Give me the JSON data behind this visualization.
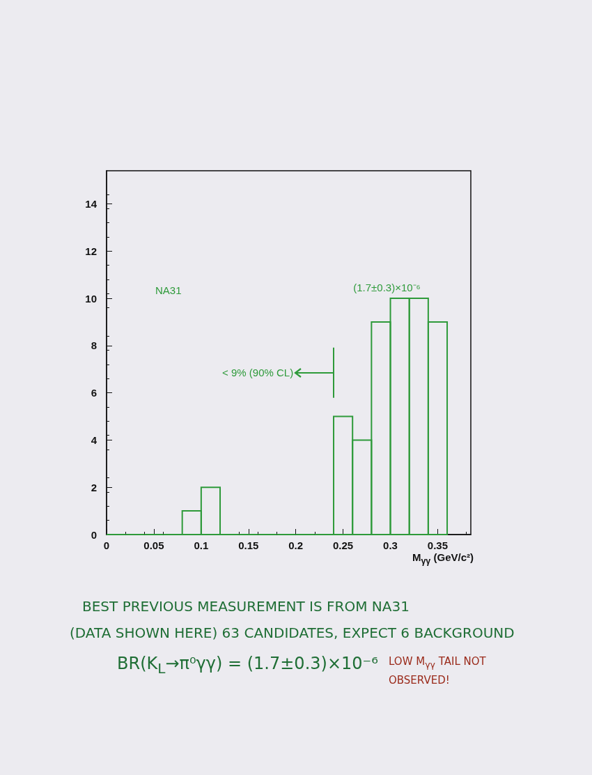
{
  "chart_data": {
    "type": "histogram",
    "title": "NA31",
    "xlabel": "M$_{γγ}$ (GeV/c²)",
    "bins": [
      0,
      0.02,
      0.04,
      0.06,
      0.08,
      0.1,
      0.12,
      0.14,
      0.16,
      0.18,
      0.2,
      0.22,
      0.24,
      0.26,
      0.28,
      0.3,
      0.32,
      0.34,
      0.36
    ],
    "values": [
      0,
      0,
      0,
      0,
      1,
      2,
      0,
      0,
      0,
      0,
      0,
      0,
      5,
      4,
      9,
      10,
      10,
      9
    ],
    "color": "#2e9a3a",
    "xlim": [
      0,
      0.385
    ],
    "xticks": [
      0,
      0.05,
      0.1,
      0.15,
      0.2,
      0.25,
      0.3,
      0.35
    ],
    "ylim": [
      0,
      15.4
    ],
    "yticks": [
      0,
      2,
      4,
      6,
      8,
      10,
      12,
      14
    ],
    "grid": false,
    "ref_lines": [
      {
        "axis": "x",
        "value": 0.24,
        "label": "< 9% (90% CL)"
      }
    ],
    "annotations": [
      "(1.7±0.3)×10⁻⁶",
      "BEST PREVIOUS MEASUREMENT IS FROM NA31",
      "(DATA SHOWN HERE) 63 CANDIDATES, EXPECT 6 BACKGROUND",
      "BR(K$_{L}$→π⁰γγ) = (1.7±0.3)×10⁻⁶",
      "LOW M$_{γγ}$ TAIL NOT OBSERVED!"
    ]
  }
}
